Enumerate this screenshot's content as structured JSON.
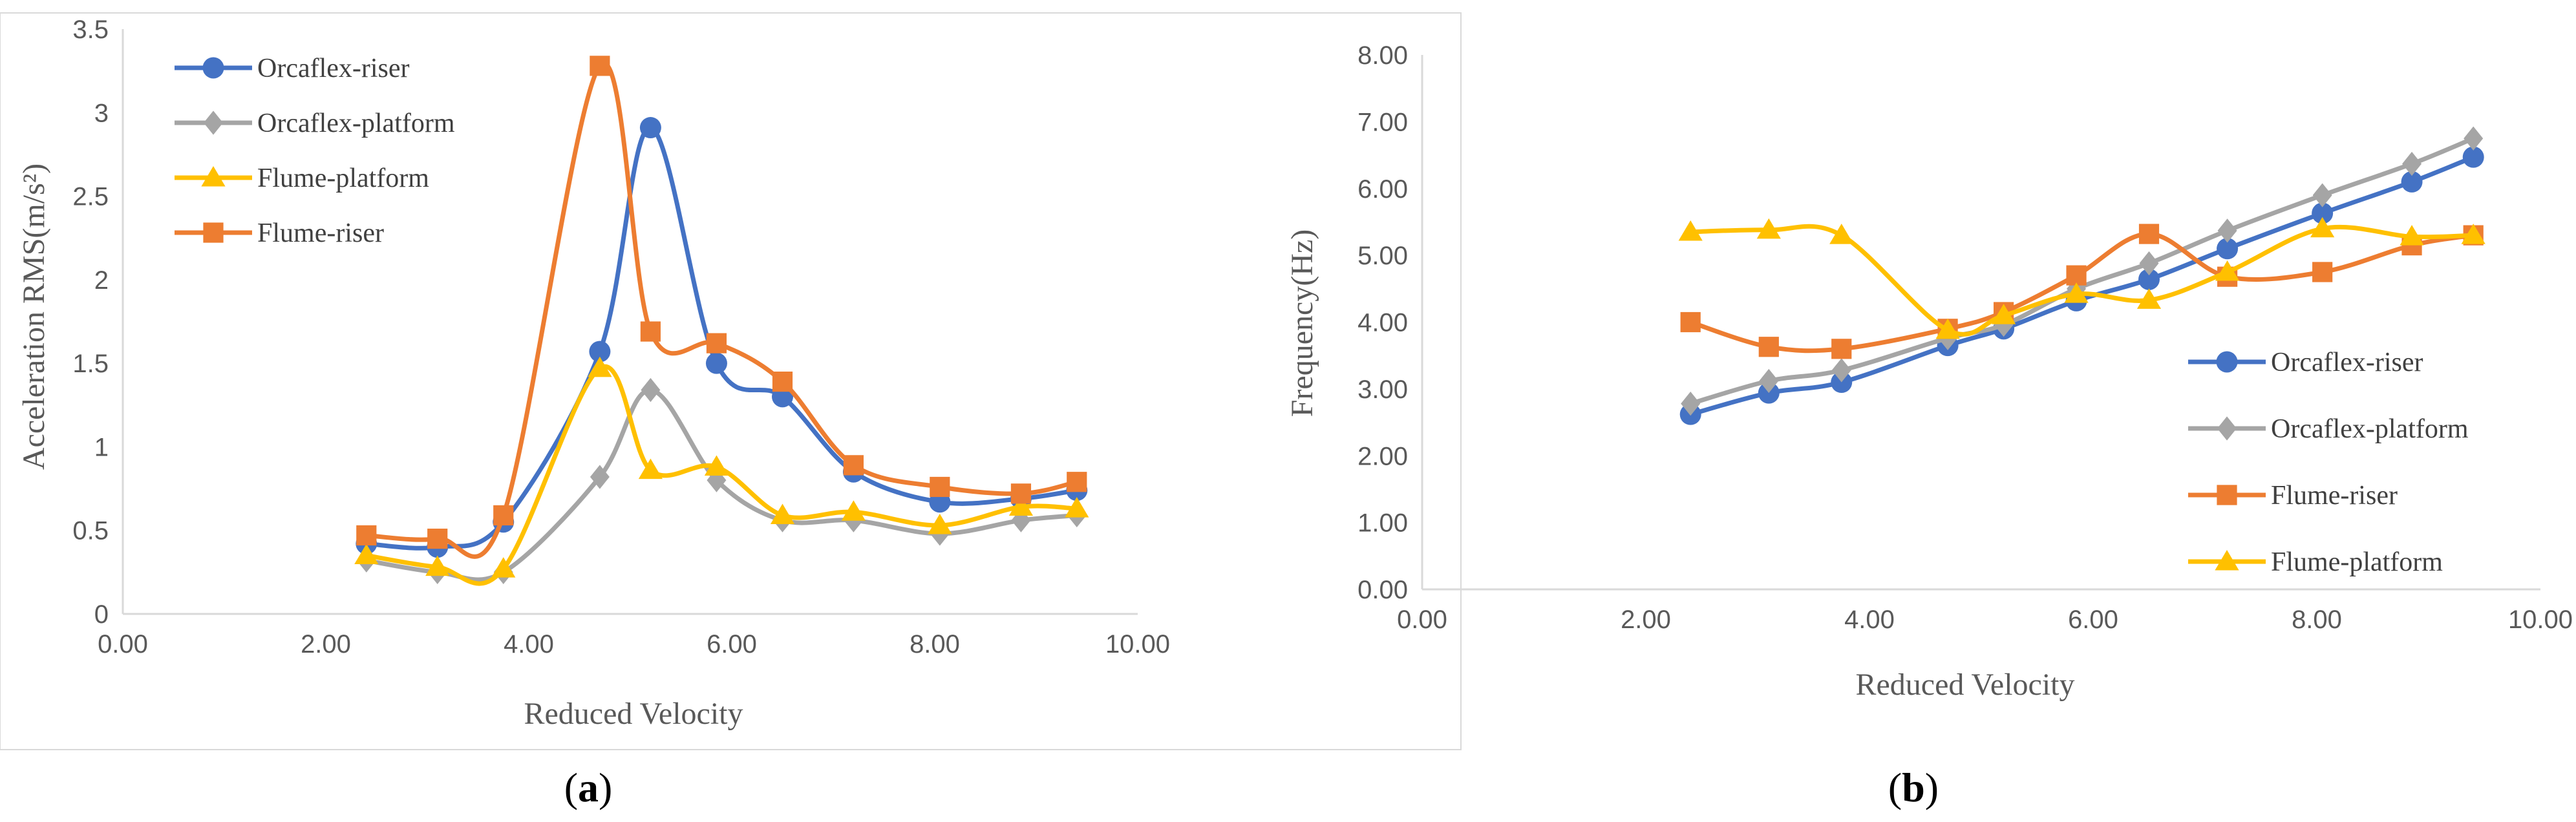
{
  "colors": {
    "blue": "#4472C4",
    "gray": "#A5A5A5",
    "yellow": "#FFC000",
    "orange": "#ED7D31",
    "axis": "#D9D9D9",
    "text": "#595959"
  },
  "chart_data": [
    {
      "type": "line",
      "panel_label_open": "(",
      "panel_label_letter": "a",
      "panel_label_close": ")",
      "xlabel": "Reduced Velocity",
      "ylabel": "Acceleration RMS(m/s²)",
      "xlim": [
        0,
        10
      ],
      "ylim": [
        0,
        3.5
      ],
      "xticks": [
        "0.00",
        "2.00",
        "4.00",
        "6.00",
        "8.00",
        "10.00"
      ],
      "yticks": [
        "0",
        "0.5",
        "1",
        "1.5",
        "2",
        "2.5",
        "3",
        "3.5"
      ],
      "grid": false,
      "legend_position": "top-left",
      "x": [
        2.4,
        3.1,
        3.75,
        4.7,
        5.2,
        5.85,
        6.5,
        7.2,
        8.05,
        8.85,
        9.4
      ],
      "series": [
        {
          "name": "Orcaflex-riser",
          "color": "#4472C4",
          "marker": "circle",
          "values": [
            0.42,
            0.4,
            0.55,
            1.57,
            2.91,
            1.5,
            1.3,
            0.85,
            0.67,
            0.69,
            0.74
          ]
        },
        {
          "name": "Orcaflex-platform",
          "color": "#A5A5A5",
          "marker": "diamond",
          "values": [
            0.32,
            0.25,
            0.25,
            0.82,
            1.34,
            0.8,
            0.56,
            0.56,
            0.48,
            0.56,
            0.59
          ]
        },
        {
          "name": "Flume-platform",
          "color": "#FFC000",
          "marker": "triangle",
          "values": [
            0.35,
            0.28,
            0.27,
            1.47,
            0.86,
            0.88,
            0.59,
            0.61,
            0.53,
            0.64,
            0.63
          ]
        },
        {
          "name": "Flume-riser",
          "color": "#ED7D31",
          "marker": "square",
          "values": [
            0.47,
            0.45,
            0.59,
            3.28,
            1.69,
            1.62,
            1.39,
            0.89,
            0.76,
            0.72,
            0.79
          ]
        }
      ]
    },
    {
      "type": "line",
      "panel_label_open": "(",
      "panel_label_letter": "b",
      "panel_label_close": ")",
      "xlabel": "Reduced Velocity",
      "ylabel": "Frequency(Hz)",
      "xlim": [
        0,
        10
      ],
      "ylim": [
        0,
        8
      ],
      "xticks": [
        "0.00",
        "2.00",
        "4.00",
        "6.00",
        "8.00",
        "10.00"
      ],
      "yticks": [
        "0.00",
        "1.00",
        "2.00",
        "3.00",
        "4.00",
        "5.00",
        "6.00",
        "7.00",
        "8.00"
      ],
      "grid": false,
      "legend_position": "right",
      "x": [
        2.4,
        3.1,
        3.75,
        4.7,
        5.2,
        5.85,
        6.5,
        7.2,
        8.05,
        8.85,
        9.4
      ],
      "series": [
        {
          "name": "Orcaflex-riser",
          "color": "#4472C4",
          "marker": "circle",
          "values": [
            2.62,
            2.94,
            3.1,
            3.65,
            3.9,
            4.32,
            4.64,
            5.1,
            5.63,
            6.1,
            6.47
          ]
        },
        {
          "name": "Orcaflex-platform",
          "color": "#A5A5A5",
          "marker": "diamond",
          "values": [
            2.78,
            3.12,
            3.28,
            3.76,
            3.96,
            4.5,
            4.88,
            5.37,
            5.9,
            6.37,
            6.75
          ]
        },
        {
          "name": "Flume-riser",
          "color": "#ED7D31",
          "marker": "square",
          "values": [
            4.0,
            3.63,
            3.6,
            3.9,
            4.15,
            4.7,
            5.32,
            4.68,
            4.75,
            5.15,
            5.3
          ]
        },
        {
          "name": "Flume-platform",
          "color": "#FFC000",
          "marker": "triangle",
          "values": [
            5.35,
            5.38,
            5.3,
            3.88,
            4.1,
            4.42,
            4.33,
            4.75,
            5.4,
            5.28,
            5.3
          ]
        }
      ]
    }
  ]
}
